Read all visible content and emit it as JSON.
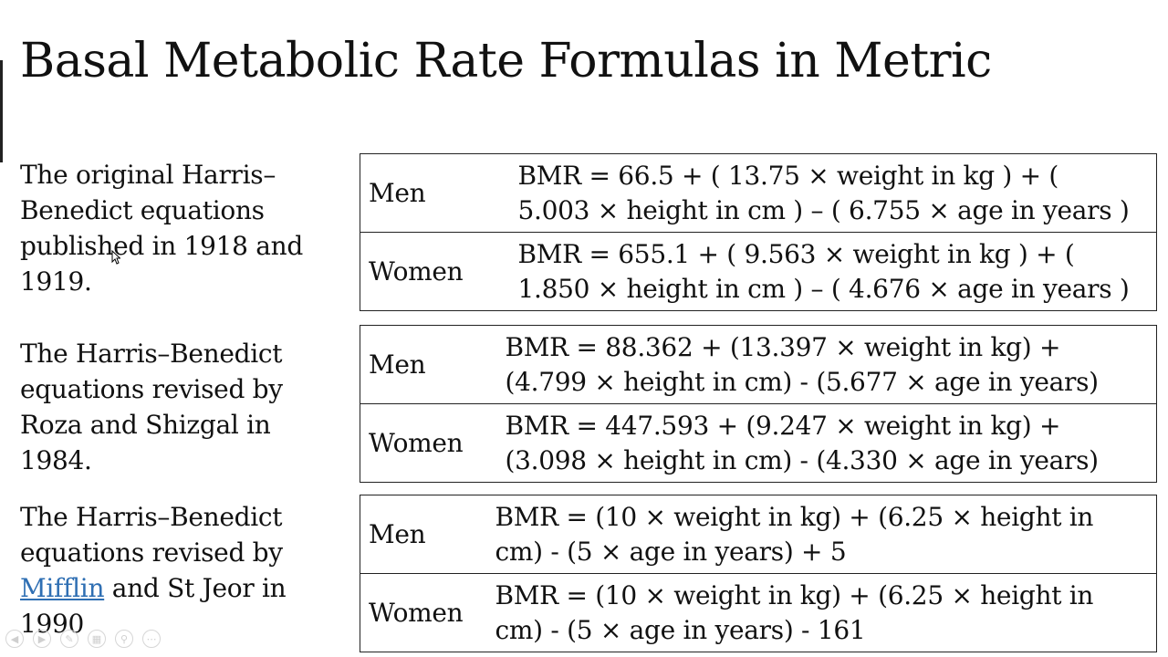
{
  "slide": {
    "title": "Basal Metabolic Rate Formulas in Metric"
  },
  "sections": [
    {
      "description": "The original Harris–Benedict equations published in 1918 and 1919.",
      "rows": [
        {
          "label": "Men",
          "formula": "BMR = 66.5 + ( 13.75 × weight in kg ) + ( 5.003 × height in cm ) – ( 6.755 × age in years )"
        },
        {
          "label": "Women",
          "formula": "BMR = 655.1 + ( 9.563 × weight in kg ) + ( 1.850 × height in cm ) – ( 4.676 × age in years )"
        }
      ]
    },
    {
      "description": "The Harris–Benedict equations revised by Roza and Shizgal in 1984.",
      "rows": [
        {
          "label": "Men",
          "formula": "BMR = 88.362 + (13.397 × weight in kg) + (4.799 × height in cm) - (5.677 × age in years)"
        },
        {
          "label": "Women",
          "formula": "BMR = 447.593 + (9.247 × weight in kg) + (3.098 × height in cm) - (4.330 × age in years)"
        }
      ]
    },
    {
      "description_link": "Mifflin",
      "description_rest": " and St Jeor in 1990",
      "description_prefix": "The Harris–Benedict equations revised by ",
      "rows": [
        {
          "label": "Men",
          "formula": "BMR = (10 × weight in kg) + (6.25 × height in cm) - (5 × age in years) + 5"
        },
        {
          "label": "Women",
          "formula": "BMR = (10 × weight in kg) + (6.25 × height in cm) - (5 × age in years) - 161"
        }
      ]
    }
  ],
  "presentation_toolbar": {
    "icons": [
      "previous-slide-icon",
      "next-slide-icon",
      "pen-icon",
      "slides-grid-icon",
      "zoom-icon",
      "more-options-icon"
    ]
  }
}
